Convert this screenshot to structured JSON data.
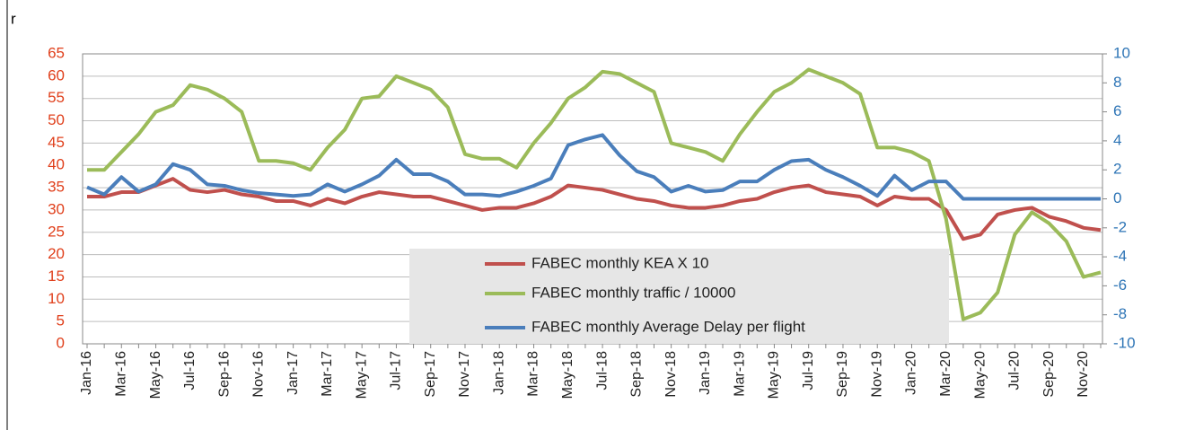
{
  "annotation": "r",
  "chart_data": {
    "type": "line",
    "categories": [
      "Jan-16",
      null,
      "Mar-16",
      null,
      "May-16",
      null,
      "Jul-16",
      null,
      "Sep-16",
      null,
      "Nov-16",
      null,
      "Jan-17",
      null,
      "Mar-17",
      null,
      "May-17",
      null,
      "Jul-17",
      null,
      "Sep-17",
      null,
      "Nov-17",
      null,
      "Jan-18",
      null,
      "Mar-18",
      null,
      "May-18",
      null,
      "Jul-18",
      null,
      "Sep-18",
      null,
      "Nov-18",
      null,
      "Jan-19",
      null,
      "Mar-19",
      null,
      "May-19",
      null,
      "Jul-19",
      null,
      "Sep-19",
      null,
      "Nov-19",
      null,
      "Jan-20",
      null,
      "Mar-20",
      null,
      "May-20",
      null,
      "Jul-20",
      null,
      "Sep-20",
      null,
      "Nov-20",
      null
    ],
    "series": [
      {
        "name": "FABEC monthly KEA X 10",
        "color": "#c0504d",
        "axis": "y",
        "values": [
          33,
          33,
          34,
          34,
          35.5,
          37,
          34.5,
          34,
          34.5,
          33.5,
          33,
          32,
          32,
          31,
          32.5,
          31.5,
          33,
          34,
          33.5,
          33,
          33,
          32,
          31,
          30,
          30.5,
          30.5,
          31.5,
          33,
          35.5,
          35,
          34.5,
          33.5,
          32.5,
          32,
          31,
          30.5,
          30.5,
          31,
          32,
          32.5,
          34,
          35,
          35.5,
          34,
          33.5,
          33,
          31,
          33,
          32.5,
          32.5,
          30,
          23.5,
          24.5,
          29,
          30,
          30.5,
          28.5,
          27.5,
          26,
          25.5
        ]
      },
      {
        "name": "FABEC monthly traffic / 10000",
        "color": "#9bbb59",
        "axis": "y",
        "values": [
          39,
          39,
          43,
          47,
          52,
          53.5,
          58,
          57,
          55,
          52,
          41,
          41,
          40.5,
          39,
          44,
          48,
          55,
          55.5,
          60,
          58.5,
          57,
          53,
          42.5,
          41.5,
          41.5,
          39.5,
          45,
          49.5,
          55,
          57.5,
          61,
          60.5,
          58.5,
          56.5,
          45,
          44,
          43,
          41,
          47,
          52,
          56.5,
          58.5,
          61.5,
          60,
          58.5,
          56,
          44,
          44,
          43,
          41,
          28,
          5.5,
          7,
          11.5,
          24.5,
          29.5,
          27,
          23,
          15,
          16
        ]
      },
      {
        "name": "FABEC monthly Average Delay per flight",
        "color": "#4a7ebb",
        "axis": "y2",
        "values": [
          0.8,
          0.3,
          1.5,
          0.5,
          1.0,
          2.4,
          2.0,
          1.0,
          0.9,
          0.6,
          0.4,
          0.3,
          0.2,
          0.3,
          1.0,
          0.5,
          1.0,
          1.6,
          2.7,
          1.7,
          1.7,
          1.2,
          0.3,
          0.3,
          0.2,
          0.5,
          0.9,
          1.4,
          3.7,
          4.1,
          4.4,
          3.0,
          1.9,
          1.5,
          0.5,
          0.9,
          0.5,
          0.6,
          1.2,
          1.2,
          2.0,
          2.6,
          2.7,
          2.0,
          1.5,
          0.9,
          0.2,
          1.6,
          0.6,
          1.2,
          1.2,
          0,
          0,
          0,
          0,
          0,
          0,
          0,
          0,
          0
        ]
      }
    ],
    "ylim": [
      0,
      65
    ],
    "yticks": [
      0,
      5,
      10,
      15,
      20,
      25,
      30,
      35,
      40,
      45,
      50,
      55,
      60,
      65
    ],
    "y2lim": [
      -10,
      10
    ],
    "y2ticks": [
      -10,
      -8,
      -6,
      -4,
      -2,
      0,
      2,
      4,
      6,
      8,
      10
    ],
    "grid": true
  }
}
